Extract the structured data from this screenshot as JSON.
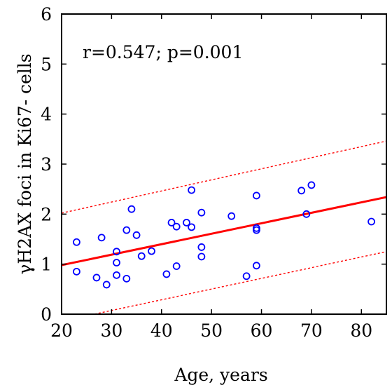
{
  "chart_data": {
    "type": "scatter",
    "xlabel": "Age, years",
    "ylabel": "γH2AX foci in Ki67- cells",
    "annotation": "r=0.547; p=0.001",
    "xlim": [
      20,
      85
    ],
    "ylim": [
      0,
      6
    ],
    "xticks": [
      20,
      30,
      40,
      50,
      60,
      70,
      80
    ],
    "yticks": [
      0,
      1,
      2,
      3,
      4,
      5,
      6
    ],
    "grid": false,
    "colors": {
      "points": "#0000ff",
      "fit": "#ff0000",
      "axes": "#000000"
    },
    "points": [
      {
        "x": 23,
        "y": 1.44
      },
      {
        "x": 23,
        "y": 0.85
      },
      {
        "x": 27,
        "y": 0.73
      },
      {
        "x": 28,
        "y": 1.53
      },
      {
        "x": 29,
        "y": 0.59
      },
      {
        "x": 31,
        "y": 1.25
      },
      {
        "x": 31,
        "y": 1.03
      },
      {
        "x": 31,
        "y": 0.78
      },
      {
        "x": 33,
        "y": 1.68
      },
      {
        "x": 33,
        "y": 0.71
      },
      {
        "x": 34,
        "y": 2.1
      },
      {
        "x": 35,
        "y": 1.58
      },
      {
        "x": 36,
        "y": 1.16
      },
      {
        "x": 38,
        "y": 1.26
      },
      {
        "x": 41,
        "y": 0.8
      },
      {
        "x": 42,
        "y": 1.83
      },
      {
        "x": 43,
        "y": 1.75
      },
      {
        "x": 43,
        "y": 0.96
      },
      {
        "x": 45,
        "y": 1.83
      },
      {
        "x": 46,
        "y": 1.74
      },
      {
        "x": 46,
        "y": 2.48
      },
      {
        "x": 48,
        "y": 2.03
      },
      {
        "x": 48,
        "y": 1.34
      },
      {
        "x": 48,
        "y": 1.15
      },
      {
        "x": 54,
        "y": 1.96
      },
      {
        "x": 57,
        "y": 0.76
      },
      {
        "x": 59,
        "y": 2.37
      },
      {
        "x": 59,
        "y": 1.72
      },
      {
        "x": 59,
        "y": 1.68
      },
      {
        "x": 59,
        "y": 0.97
      },
      {
        "x": 68,
        "y": 2.47
      },
      {
        "x": 69,
        "y": 2.0
      },
      {
        "x": 70,
        "y": 2.58
      },
      {
        "x": 82,
        "y": 1.85
      }
    ],
    "fit_line": {
      "x": [
        20,
        85
      ],
      "y": [
        0.98,
        2.34
      ]
    },
    "ci_upper": {
      "x": [
        20,
        85
      ],
      "y": [
        2.02,
        3.46
      ]
    },
    "ci_lower": {
      "x": [
        20,
        85
      ],
      "y": [
        -0.14,
        1.25
      ]
    }
  }
}
